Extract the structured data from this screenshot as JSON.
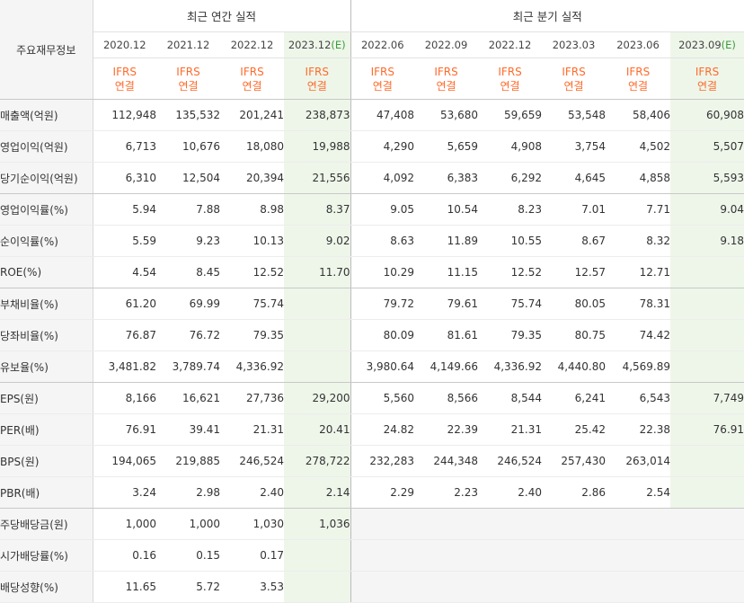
{
  "header": {
    "row_label": "주요재무정보",
    "annual_group": "최근 연간 실적",
    "quarter_group": "최근 분기 실적",
    "periods": [
      {
        "label": "2020.12",
        "est": ""
      },
      {
        "label": "2021.12",
        "est": ""
      },
      {
        "label": "2022.12",
        "est": ""
      },
      {
        "label": "2023.12",
        "est": "(E)"
      },
      {
        "label": "2022.06",
        "est": ""
      },
      {
        "label": "2022.09",
        "est": ""
      },
      {
        "label": "2022.12",
        "est": ""
      },
      {
        "label": "2023.03",
        "est": ""
      },
      {
        "label": "2023.06",
        "est": ""
      },
      {
        "label": "2023.09",
        "est": "(E)"
      }
    ],
    "standard_line1": "IFRS",
    "standard_line2": "연결"
  },
  "rows": [
    {
      "label": "매출액(억원)",
      "values": [
        "112,948",
        "135,532",
        "201,241",
        "238,873",
        "47,408",
        "53,680",
        "59,659",
        "53,548",
        "58,406",
        "60,908"
      ]
    },
    {
      "label": "영업이익(억원)",
      "values": [
        "6,713",
        "10,676",
        "18,080",
        "19,988",
        "4,290",
        "5,659",
        "4,908",
        "3,754",
        "4,502",
        "5,507"
      ]
    },
    {
      "label": "당기순이익(억원)",
      "values": [
        "6,310",
        "12,504",
        "20,394",
        "21,556",
        "4,092",
        "6,383",
        "6,292",
        "4,645",
        "4,858",
        "5,593"
      ]
    },
    {
      "label": "영업이익률(%)",
      "values": [
        "5.94",
        "7.88",
        "8.98",
        "8.37",
        "9.05",
        "10.54",
        "8.23",
        "7.01",
        "7.71",
        "9.04"
      ]
    },
    {
      "label": "순이익률(%)",
      "values": [
        "5.59",
        "9.23",
        "10.13",
        "9.02",
        "8.63",
        "11.89",
        "10.55",
        "8.67",
        "8.32",
        "9.18"
      ]
    },
    {
      "label": "ROE(%)",
      "values": [
        "4.54",
        "8.45",
        "12.52",
        "11.70",
        "10.29",
        "11.15",
        "12.52",
        "12.57",
        "12.71",
        ""
      ]
    },
    {
      "label": "부채비율(%)",
      "values": [
        "61.20",
        "69.99",
        "75.74",
        "",
        "79.72",
        "79.61",
        "75.74",
        "80.05",
        "78.31",
        ""
      ]
    },
    {
      "label": "당좌비율(%)",
      "values": [
        "76.87",
        "76.72",
        "79.35",
        "",
        "80.09",
        "81.61",
        "79.35",
        "80.75",
        "74.42",
        ""
      ]
    },
    {
      "label": "유보율(%)",
      "values": [
        "3,481.82",
        "3,789.74",
        "4,336.92",
        "",
        "3,980.64",
        "4,149.66",
        "4,336.92",
        "4,440.80",
        "4,569.89",
        ""
      ]
    },
    {
      "label": "EPS(원)",
      "values": [
        "8,166",
        "16,621",
        "27,736",
        "29,200",
        "5,560",
        "8,566",
        "8,544",
        "6,241",
        "6,543",
        "7,749"
      ]
    },
    {
      "label": "PER(배)",
      "values": [
        "76.91",
        "39.41",
        "21.31",
        "20.41",
        "24.82",
        "22.39",
        "21.31",
        "25.42",
        "22.38",
        "76.91"
      ]
    },
    {
      "label": "BPS(원)",
      "values": [
        "194,065",
        "219,885",
        "246,524",
        "278,722",
        "232,283",
        "244,348",
        "246,524",
        "257,430",
        "263,014",
        ""
      ]
    },
    {
      "label": "PBR(배)",
      "values": [
        "3.24",
        "2.98",
        "2.40",
        "2.14",
        "2.29",
        "2.23",
        "2.40",
        "2.86",
        "2.54",
        ""
      ]
    },
    {
      "label": "주당배당금(원)",
      "values": [
        "1,000",
        "1,000",
        "1,030",
        "1,036",
        "",
        "",
        "",
        "",
        "",
        ""
      ]
    },
    {
      "label": "시가배당률(%)",
      "values": [
        "0.16",
        "0.15",
        "0.17",
        "",
        "",
        "",
        "",
        "",
        "",
        ""
      ]
    },
    {
      "label": "배당성향(%)",
      "values": [
        "11.65",
        "5.72",
        "3.53",
        "",
        "",
        "",
        "",
        "",
        "",
        ""
      ]
    }
  ]
}
